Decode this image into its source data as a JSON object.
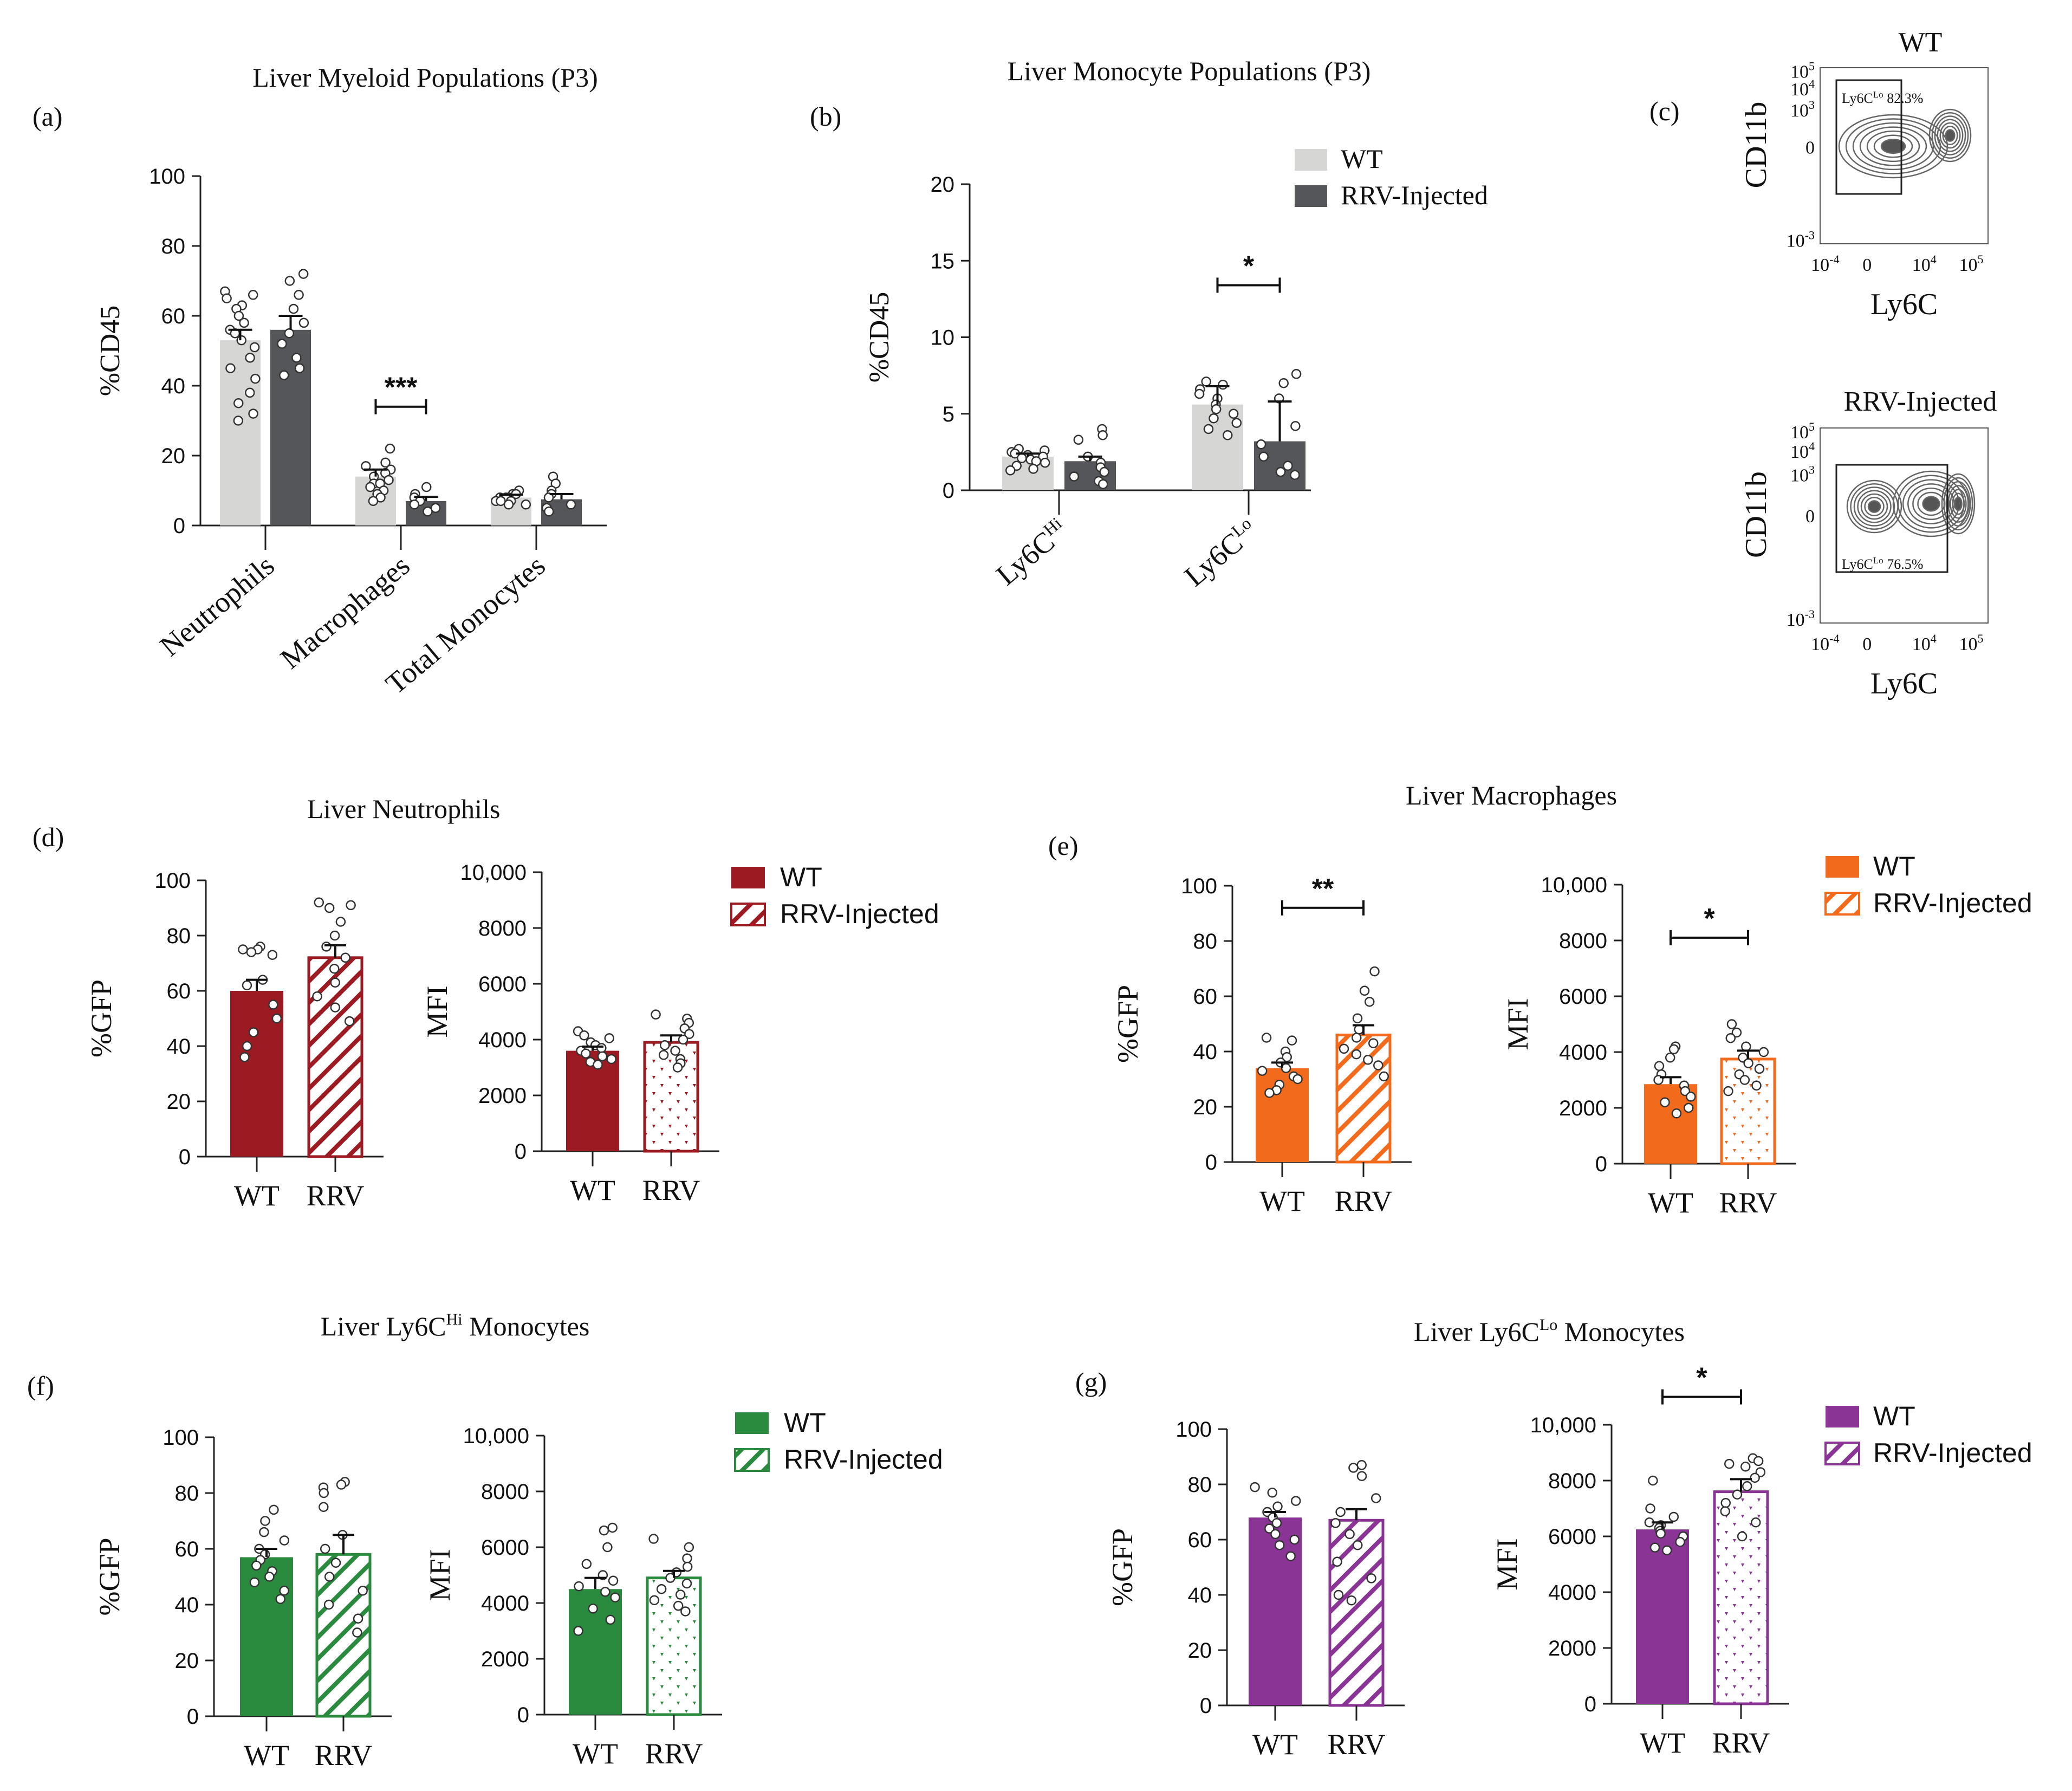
{
  "colors": {
    "grey_light": "#d6d6d4",
    "grey_dark": "#55565a",
    "neutrophil_red": "#9c1a22",
    "macrophage_orange": "#f26b1d",
    "hi_green": "#2a8a3e",
    "lo_purple": "#8a3596"
  },
  "chart_data": [
    {
      "id": "a",
      "type": "bar",
      "panel_label": "(a)",
      "title": "Liver Myeloid Populations (P3)",
      "ylabel": "%CD45",
      "ylim": [
        0,
        100
      ],
      "yticks": [
        "0",
        "20",
        "40",
        "60",
        "80",
        "100"
      ],
      "categories": [
        "Neutrophils",
        "Macrophages",
        "Total Monocytes"
      ],
      "series": [
        {
          "name": "WT",
          "values": [
            53,
            14,
            8
          ],
          "errors": [
            3,
            2,
            0.8
          ],
          "points": [
            [
              67,
              66,
              65,
              63,
              62,
              60,
              58,
              56,
              55,
              53,
              51,
              48,
              45,
              42,
              38,
              35,
              32,
              30
            ],
            [
              22,
              18,
              17,
              16,
              15,
              14,
              13,
              12,
              12,
              11,
              10,
              9,
              8,
              7
            ],
            [
              10,
              9,
              9,
              8,
              8,
              8,
              7,
              7,
              7,
              6,
              6
            ]
          ]
        },
        {
          "name": "RRV-Injected",
          "values": [
            56,
            7,
            7.5
          ],
          "errors": [
            4,
            1.2,
            1.5
          ],
          "points": [
            [
              72,
              70,
              66,
              62,
              58,
              55,
              52,
              48,
              45,
              43
            ],
            [
              11,
              9,
              8,
              7,
              6,
              5,
              4
            ],
            [
              14,
              12,
              10,
              9,
              8,
              6,
              5,
              4
            ]
          ]
        }
      ],
      "significance": [
        {
          "category": "Macrophages",
          "label": "***",
          "y": 34
        }
      ]
    },
    {
      "id": "b",
      "type": "bar",
      "panel_label": "(b)",
      "title": "Liver Monocyte Populations (P3)",
      "ylabel": "%CD45",
      "ylim": [
        0,
        20
      ],
      "yticks": [
        "0",
        "5",
        "10",
        "15",
        "20"
      ],
      "categories": [
        "Ly6CHi",
        "Ly6CLo"
      ],
      "category_parts": [
        [
          "Ly6C",
          "Hi"
        ],
        [
          "Ly6C",
          "Lo"
        ]
      ],
      "legend": [
        "WT",
        "RRV-Injected"
      ],
      "series": [
        {
          "name": "WT",
          "values": [
            2.2,
            5.6
          ],
          "errors": [
            0.2,
            1.2
          ],
          "points": [
            [
              2.7,
              2.6,
              2.5,
              2.4,
              2.3,
              2.2,
              2.1,
              2.0,
              1.9,
              1.8,
              1.6,
              1.4,
              1.3
            ],
            [
              7.1,
              6.9,
              6.6,
              6.3,
              6.0,
              5.6,
              5.3,
              5.0,
              4.7,
              4.4,
              4.0,
              3.6
            ]
          ]
        },
        {
          "name": "RRV-Injected",
          "values": [
            1.9,
            3.2
          ],
          "errors": [
            0.3,
            2.6
          ],
          "points": [
            [
              4.0,
              3.6,
              3.3,
              2.2,
              1.8,
              1.5,
              1.2,
              0.9,
              0.6,
              0.4
            ],
            [
              7.6,
              7.0,
              6.0,
              4.2,
              3.0,
              2.2,
              1.6,
              1.2,
              1.0
            ]
          ]
        }
      ],
      "significance": [
        {
          "category": "Ly6CLo",
          "label": "*",
          "y": 13.4
        }
      ]
    },
    {
      "id": "d1",
      "type": "bar",
      "panel_label": "(d)",
      "title": "Liver Neutrophils",
      "ylabel": "%GFP",
      "ylim": [
        0,
        100
      ],
      "yticks": [
        "0",
        "20",
        "40",
        "60",
        "80",
        "100"
      ],
      "categories": [
        "WT",
        "RRV"
      ],
      "values": [
        60,
        72
      ],
      "errors": [
        4,
        4.5
      ],
      "points": [
        [
          76,
          75,
          75,
          74,
          73,
          64,
          62,
          55,
          50,
          45,
          40,
          36
        ],
        [
          92,
          91,
          90,
          85,
          80,
          76,
          72,
          68,
          63,
          58,
          54,
          49
        ]
      ]
    },
    {
      "id": "d2",
      "type": "bar",
      "panel_label": "",
      "title": "",
      "ylabel": "MFI",
      "ylim": [
        0,
        10000
      ],
      "yticks": [
        "0",
        "2000",
        "4000",
        "6000",
        "8000",
        "10,000"
      ],
      "categories": [
        "WT",
        "RRV"
      ],
      "values": [
        3600,
        3900
      ],
      "errors": [
        150,
        250
      ],
      "points": [
        [
          4300,
          4150,
          4050,
          3900,
          3800,
          3700,
          3600,
          3500,
          3400,
          3300,
          3200,
          3100
        ],
        [
          4900,
          4750,
          4600,
          4400,
          4200,
          4000,
          3800,
          3600,
          3450,
          3300,
          3150,
          3000
        ]
      ],
      "legend": [
        "WT",
        "RRV-Injected"
      ]
    },
    {
      "id": "e1",
      "type": "bar",
      "panel_label": "(e)",
      "title": "Liver Macrophages",
      "ylabel": "%GFP",
      "ylim": [
        0,
        100
      ],
      "yticks": [
        "0",
        "20",
        "40",
        "60",
        "80",
        "100"
      ],
      "categories": [
        "WT",
        "RRV"
      ],
      "values": [
        34,
        46
      ],
      "errors": [
        2,
        3.5
      ],
      "points": [
        [
          45,
          44,
          40,
          38,
          36,
          34,
          33,
          31,
          30,
          28,
          26,
          25
        ],
        [
          69,
          62,
          58,
          52,
          48,
          45,
          43,
          41,
          39,
          37,
          35,
          31
        ]
      ],
      "significance": [
        {
          "label": "**",
          "y": 92
        }
      ]
    },
    {
      "id": "e2",
      "type": "bar",
      "panel_label": "",
      "title": "",
      "ylabel": "MFI",
      "ylim": [
        0,
        10000
      ],
      "yticks": [
        "0",
        "2000",
        "4000",
        "6000",
        "8000",
        "10,000"
      ],
      "categories": [
        "WT",
        "RRV"
      ],
      "values": [
        2850,
        3750
      ],
      "errors": [
        250,
        300
      ],
      "points": [
        [
          4200,
          4100,
          3800,
          3500,
          3200,
          3000,
          2800,
          2600,
          2400,
          2200,
          2000,
          1800
        ],
        [
          5000,
          4700,
          4500,
          4200,
          4000,
          3800,
          3600,
          3400,
          3200,
          3000,
          2800,
          2600
        ]
      ],
      "significance": [
        {
          "label": "*",
          "y": 8100
        }
      ],
      "legend": [
        "WT",
        "RRV-Injected"
      ]
    },
    {
      "id": "f1",
      "type": "bar",
      "panel_label": "(f)",
      "title": "Liver Ly6CHi Monocytes",
      "title_parts": [
        "Liver Ly6C",
        "Hi",
        " Monocytes"
      ],
      "ylabel": "%GFP",
      "ylim": [
        0,
        100
      ],
      "yticks": [
        "0",
        "20",
        "40",
        "60",
        "80",
        "100"
      ],
      "categories": [
        "WT",
        "RRV"
      ],
      "values": [
        57,
        58
      ],
      "errors": [
        3,
        7
      ],
      "points": [
        [
          74,
          70,
          66,
          63,
          60,
          58,
          56,
          54,
          52,
          50,
          48,
          45,
          42
        ],
        [
          84,
          83,
          82,
          80,
          75,
          65,
          60,
          55,
          50,
          45,
          40,
          35,
          30
        ]
      ]
    },
    {
      "id": "f2",
      "type": "bar",
      "panel_label": "",
      "title": "",
      "ylabel": "MFI",
      "ylim": [
        0,
        10000
      ],
      "yticks": [
        "0",
        "2000",
        "4000",
        "6000",
        "8000",
        "10,000"
      ],
      "categories": [
        "WT",
        "RRV"
      ],
      "values": [
        4500,
        4900
      ],
      "errors": [
        400,
        250
      ],
      "points": [
        [
          6700,
          6600,
          6000,
          5400,
          5000,
          4800,
          4600,
          4400,
          4200,
          3800,
          3400,
          3000
        ],
        [
          6300,
          6000,
          5600,
          5300,
          5100,
          4900,
          4700,
          4500,
          4300,
          4100,
          3900,
          3700
        ]
      ],
      "legend": [
        "WT",
        "RRV-Injected"
      ]
    },
    {
      "id": "g1",
      "type": "bar",
      "panel_label": "(g)",
      "title": "Liver Ly6CLo Monocytes",
      "title_parts": [
        "Liver Ly6C",
        "Lo",
        " Monocytes"
      ],
      "ylabel": "%GFP",
      "ylim": [
        0,
        100
      ],
      "yticks": [
        "0",
        "20",
        "40",
        "60",
        "80",
        "100"
      ],
      "categories": [
        "WT",
        "RRV"
      ],
      "values": [
        68,
        67
      ],
      "errors": [
        2,
        4
      ],
      "points": [
        [
          79,
          77,
          74,
          72,
          70,
          68,
          66,
          64,
          62,
          60,
          58,
          54
        ],
        [
          87,
          86,
          83,
          75,
          70,
          66,
          62,
          58,
          52,
          46,
          40,
          38
        ]
      ]
    },
    {
      "id": "g2",
      "type": "bar",
      "panel_label": "",
      "title": "",
      "ylabel": "MFI",
      "ylim": [
        0,
        10000
      ],
      "yticks": [
        "0",
        "2000",
        "4000",
        "6000",
        "8000",
        "10,000"
      ],
      "categories": [
        "WT",
        "RRV"
      ],
      "values": [
        6250,
        7600
      ],
      "errors": [
        250,
        450
      ],
      "points": [
        [
          8000,
          7000,
          6700,
          6500,
          6400,
          6300,
          6200,
          6100,
          6000,
          5800,
          5600,
          5500
        ],
        [
          8800,
          8700,
          8600,
          8500,
          8300,
          8100,
          7800,
          7500,
          7200,
          6900,
          6500,
          6000
        ]
      ],
      "significance": [
        {
          "label": "*",
          "y": 11000
        }
      ],
      "legend": [
        "WT",
        "RRV-Injected"
      ]
    }
  ],
  "flow_plots": [
    {
      "title": "WT",
      "panel_label": "(c)",
      "gate_label": "Ly6C",
      "gate_sup": "Lo",
      "gate_value": " 82.3%",
      "ylabel": "CD11b",
      "xlabel": "Ly6C",
      "yticks": [
        [
          "10",
          "5"
        ],
        [
          "10",
          "4"
        ],
        [
          "10",
          "3"
        ],
        [
          "0",
          ""
        ],
        [
          "10",
          "-3"
        ]
      ],
      "xticks": [
        [
          "10",
          "-4"
        ],
        [
          "0",
          ""
        ],
        [
          "10",
          "4"
        ],
        [
          "10",
          "5"
        ]
      ]
    },
    {
      "title": "RRV-Injected",
      "panel_label": "",
      "gate_label": "Ly6C",
      "gate_sup": "Lo",
      "gate_value": " 76.5%",
      "ylabel": "CD11b",
      "xlabel": "Ly6C",
      "yticks": [
        [
          "10",
          "5"
        ],
        [
          "10",
          "4"
        ],
        [
          "10",
          "3"
        ],
        [
          "0",
          ""
        ],
        [
          "10",
          "-3"
        ]
      ],
      "xticks": [
        [
          "10",
          "-4"
        ],
        [
          "0",
          ""
        ],
        [
          "10",
          "4"
        ],
        [
          "10",
          "5"
        ]
      ]
    }
  ]
}
